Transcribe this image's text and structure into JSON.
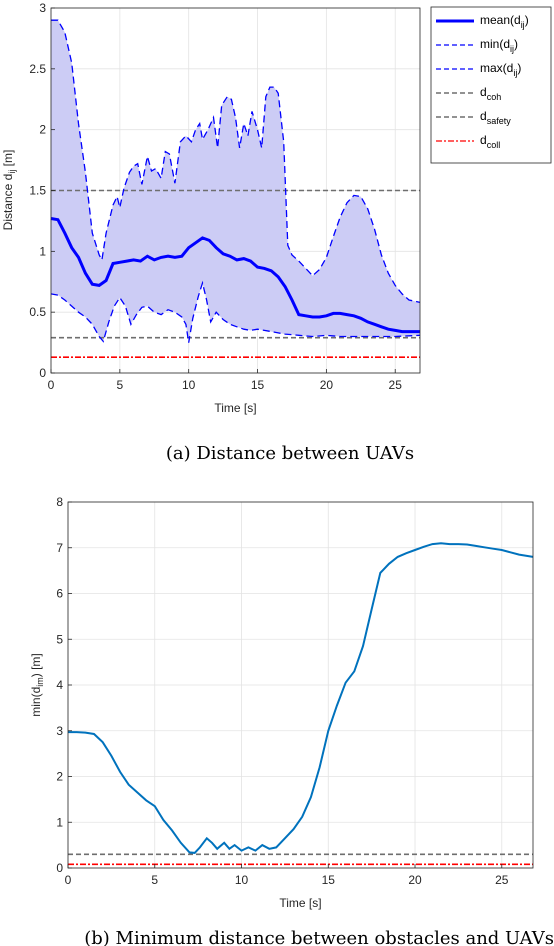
{
  "chart_data": [
    {
      "type": "line",
      "caption": "(a) Distance between UAVs",
      "xlabel": "Time [s]",
      "ylabel": "Distance d",
      "ylabel_sub": "ij",
      "ylabel_unit": " [m]",
      "xlim": [
        0,
        26.8
      ],
      "ylim": [
        0,
        3
      ],
      "xticks": [
        0,
        5,
        10,
        15,
        20,
        25
      ],
      "yticks": [
        0,
        0.5,
        1,
        1.5,
        2,
        2.5,
        3
      ],
      "grid": true,
      "legend_position": "top-right",
      "legend": [
        {
          "label": "mean(d",
          "sub": "ij",
          "tail": ")",
          "style": "solid-thick",
          "color": "#0000ff"
        },
        {
          "label": "min(d",
          "sub": "ij",
          "tail": ")",
          "style": "dashed",
          "color": "#0000ff"
        },
        {
          "label": "max(d",
          "sub": "ij",
          "tail": ")",
          "style": "dashed",
          "color": "#0000ff"
        },
        {
          "label": "d",
          "sub": "coh",
          "tail": "",
          "style": "dashed",
          "color": "#6e6e6e"
        },
        {
          "label": "d",
          "sub": "safety",
          "tail": "",
          "style": "dashed",
          "color": "#6e6e6e"
        },
        {
          "label": "d",
          "sub": "coll",
          "tail": "",
          "style": "dashdot",
          "color": "#ff0000"
        }
      ],
      "fill_color": "#ccccf5",
      "series": [
        {
          "name": "mean(dij)",
          "points": [
            [
              0,
              1.27
            ],
            [
              0.5,
              1.26
            ],
            [
              1,
              1.15
            ],
            [
              1.5,
              1.03
            ],
            [
              2,
              0.95
            ],
            [
              2.5,
              0.82
            ],
            [
              3,
              0.73
            ],
            [
              3.5,
              0.72
            ],
            [
              4,
              0.76
            ],
            [
              4.5,
              0.9
            ],
            [
              5,
              0.91
            ],
            [
              5.5,
              0.92
            ],
            [
              6,
              0.93
            ],
            [
              6.5,
              0.92
            ],
            [
              7,
              0.96
            ],
            [
              7.5,
              0.93
            ],
            [
              8,
              0.95
            ],
            [
              8.5,
              0.96
            ],
            [
              9,
              0.95
            ],
            [
              9.5,
              0.96
            ],
            [
              10,
              1.03
            ],
            [
              10.5,
              1.07
            ],
            [
              11,
              1.11
            ],
            [
              11.5,
              1.09
            ],
            [
              12,
              1.03
            ],
            [
              12.5,
              0.98
            ],
            [
              13,
              0.96
            ],
            [
              13.5,
              0.93
            ],
            [
              14,
              0.94
            ],
            [
              14.5,
              0.92
            ],
            [
              15,
              0.87
            ],
            [
              15.5,
              0.86
            ],
            [
              16,
              0.84
            ],
            [
              16.5,
              0.79
            ],
            [
              17,
              0.71
            ],
            [
              17.5,
              0.6
            ],
            [
              18,
              0.48
            ],
            [
              18.5,
              0.47
            ],
            [
              19,
              0.46
            ],
            [
              19.5,
              0.46
            ],
            [
              20,
              0.47
            ],
            [
              20.5,
              0.49
            ],
            [
              21,
              0.49
            ],
            [
              21.5,
              0.48
            ],
            [
              22,
              0.47
            ],
            [
              22.5,
              0.45
            ],
            [
              23,
              0.42
            ],
            [
              23.5,
              0.4
            ],
            [
              24,
              0.38
            ],
            [
              24.5,
              0.36
            ],
            [
              25,
              0.35
            ],
            [
              25.5,
              0.34
            ],
            [
              26,
              0.34
            ],
            [
              26.8,
              0.34
            ]
          ]
        },
        {
          "name": "min(dij)",
          "points": [
            [
              0,
              0.65
            ],
            [
              0.5,
              0.64
            ],
            [
              1,
              0.6
            ],
            [
              1.5,
              0.55
            ],
            [
              2,
              0.5
            ],
            [
              2.5,
              0.46
            ],
            [
              3,
              0.4
            ],
            [
              3.5,
              0.3
            ],
            [
              3.8,
              0.26
            ],
            [
              4.2,
              0.42
            ],
            [
              4.6,
              0.55
            ],
            [
              5,
              0.62
            ],
            [
              5.4,
              0.55
            ],
            [
              5.8,
              0.4
            ],
            [
              6.2,
              0.48
            ],
            [
              6.6,
              0.54
            ],
            [
              7,
              0.55
            ],
            [
              7.5,
              0.5
            ],
            [
              8,
              0.48
            ],
            [
              8.5,
              0.52
            ],
            [
              9,
              0.5
            ],
            [
              9.5,
              0.46
            ],
            [
              9.8,
              0.4
            ],
            [
              10,
              0.25
            ],
            [
              10.3,
              0.45
            ],
            [
              10.7,
              0.63
            ],
            [
              11,
              0.74
            ],
            [
              11.3,
              0.6
            ],
            [
              11.6,
              0.42
            ],
            [
              12,
              0.5
            ],
            [
              12.5,
              0.44
            ],
            [
              13,
              0.4
            ],
            [
              13.5,
              0.38
            ],
            [
              14,
              0.36
            ],
            [
              14.5,
              0.35
            ],
            [
              15,
              0.36
            ],
            [
              15.5,
              0.35
            ],
            [
              16,
              0.34
            ],
            [
              16.5,
              0.33
            ],
            [
              17,
              0.32
            ],
            [
              18,
              0.31
            ],
            [
              19,
              0.3
            ],
            [
              20,
              0.31
            ],
            [
              21,
              0.3
            ],
            [
              22,
              0.3
            ],
            [
              23,
              0.3
            ],
            [
              24,
              0.3
            ],
            [
              25,
              0.3
            ],
            [
              26.8,
              0.31
            ]
          ]
        },
        {
          "name": "max(dij)",
          "points": [
            [
              0,
              2.9
            ],
            [
              0.5,
              2.9
            ],
            [
              1,
              2.8
            ],
            [
              1.5,
              2.55
            ],
            [
              2,
              2.05
            ],
            [
              2.5,
              1.65
            ],
            [
              3,
              1.15
            ],
            [
              3.5,
              0.97
            ],
            [
              3.7,
              0.93
            ],
            [
              4,
              1.15
            ],
            [
              4.5,
              1.38
            ],
            [
              4.8,
              1.45
            ],
            [
              5,
              1.36
            ],
            [
              5.3,
              1.52
            ],
            [
              5.7,
              1.65
            ],
            [
              6,
              1.7
            ],
            [
              6.3,
              1.72
            ],
            [
              6.6,
              1.55
            ],
            [
              7,
              1.78
            ],
            [
              7.3,
              1.66
            ],
            [
              7.6,
              1.68
            ],
            [
              8,
              1.6
            ],
            [
              8.3,
              1.82
            ],
            [
              8.6,
              1.8
            ],
            [
              9,
              1.56
            ],
            [
              9.4,
              1.9
            ],
            [
              9.8,
              1.95
            ],
            [
              10.2,
              1.9
            ],
            [
              10.5,
              2.0
            ],
            [
              10.8,
              2.05
            ],
            [
              11,
              1.92
            ],
            [
              11.4,
              2.0
            ],
            [
              11.8,
              2.1
            ],
            [
              12.1,
              1.85
            ],
            [
              12.4,
              2.2
            ],
            [
              12.8,
              2.27
            ],
            [
              13.1,
              2.25
            ],
            [
              13.4,
              2.1
            ],
            [
              13.7,
              1.85
            ],
            [
              14,
              2.05
            ],
            [
              14.3,
              1.95
            ],
            [
              14.6,
              2.15
            ],
            [
              15,
              2.0
            ],
            [
              15.3,
              1.85
            ],
            [
              15.6,
              2.27
            ],
            [
              15.9,
              2.35
            ],
            [
              16.2,
              2.35
            ],
            [
              16.5,
              2.3
            ],
            [
              16.9,
              1.9
            ],
            [
              17.2,
              1.05
            ],
            [
              17.5,
              0.97
            ],
            [
              18,
              0.92
            ],
            [
              18.5,
              0.86
            ],
            [
              19,
              0.8
            ],
            [
              19.5,
              0.85
            ],
            [
              20,
              0.95
            ],
            [
              20.5,
              1.12
            ],
            [
              21,
              1.28
            ],
            [
              21.5,
              1.4
            ],
            [
              22,
              1.46
            ],
            [
              22.5,
              1.45
            ],
            [
              23,
              1.35
            ],
            [
              23.5,
              1.18
            ],
            [
              24,
              0.97
            ],
            [
              24.5,
              0.82
            ],
            [
              25,
              0.72
            ],
            [
              25.5,
              0.65
            ],
            [
              26,
              0.6
            ],
            [
              26.8,
              0.58
            ]
          ]
        },
        {
          "name": "dcoh",
          "constant": 1.5
        },
        {
          "name": "dsafety",
          "constant": 0.29
        },
        {
          "name": "dcoll",
          "constant": 0.13
        }
      ]
    },
    {
      "type": "line",
      "caption": "(b) Minimum distance between obstacles and UAVs",
      "xlabel": "Time [s]",
      "ylabel": "min(d",
      "ylabel_sub": "im",
      "ylabel_unit": ") [m]",
      "xlim": [
        0,
        26.8
      ],
      "ylim": [
        0,
        8
      ],
      "xticks": [
        0,
        5,
        10,
        15,
        20,
        25
      ],
      "yticks": [
        0,
        1,
        2,
        3,
        4,
        5,
        6,
        7,
        8
      ],
      "grid": true,
      "series": [
        {
          "name": "min(dim)",
          "color": "#0072bd",
          "points": [
            [
              0,
              2.97
            ],
            [
              0.5,
              2.97
            ],
            [
              1,
              2.96
            ],
            [
              1.5,
              2.93
            ],
            [
              2,
              2.75
            ],
            [
              2.5,
              2.45
            ],
            [
              3,
              2.1
            ],
            [
              3.5,
              1.82
            ],
            [
              4,
              1.65
            ],
            [
              4.5,
              1.48
            ],
            [
              5,
              1.35
            ],
            [
              5.5,
              1.05
            ],
            [
              6,
              0.82
            ],
            [
              6.5,
              0.55
            ],
            [
              7,
              0.34
            ],
            [
              7.3,
              0.33
            ],
            [
              7.6,
              0.45
            ],
            [
              8,
              0.65
            ],
            [
              8.3,
              0.55
            ],
            [
              8.6,
              0.42
            ],
            [
              9,
              0.55
            ],
            [
              9.3,
              0.42
            ],
            [
              9.6,
              0.5
            ],
            [
              10,
              0.38
            ],
            [
              10.4,
              0.45
            ],
            [
              10.8,
              0.38
            ],
            [
              11.2,
              0.5
            ],
            [
              11.6,
              0.42
            ],
            [
              12,
              0.45
            ],
            [
              12.5,
              0.65
            ],
            [
              13,
              0.85
            ],
            [
              13.5,
              1.12
            ],
            [
              14,
              1.55
            ],
            [
              14.5,
              2.2
            ],
            [
              15,
              3.0
            ],
            [
              15.5,
              3.55
            ],
            [
              16,
              4.05
            ],
            [
              16.5,
              4.3
            ],
            [
              17,
              4.85
            ],
            [
              17.5,
              5.65
            ],
            [
              18,
              6.45
            ],
            [
              18.5,
              6.65
            ],
            [
              19,
              6.8
            ],
            [
              19.5,
              6.88
            ],
            [
              20,
              6.95
            ],
            [
              20.5,
              7.02
            ],
            [
              21,
              7.08
            ],
            [
              21.5,
              7.1
            ],
            [
              22,
              7.08
            ],
            [
              22.5,
              7.08
            ],
            [
              23,
              7.07
            ],
            [
              23.5,
              7.04
            ],
            [
              24,
              7.01
            ],
            [
              24.5,
              6.98
            ],
            [
              25,
              6.95
            ],
            [
              25.5,
              6.9
            ],
            [
              26,
              6.85
            ],
            [
              26.8,
              6.8
            ]
          ]
        },
        {
          "name": "dsafety",
          "constant": 0.3
        },
        {
          "name": "dcoll",
          "constant": 0.08
        }
      ]
    }
  ]
}
